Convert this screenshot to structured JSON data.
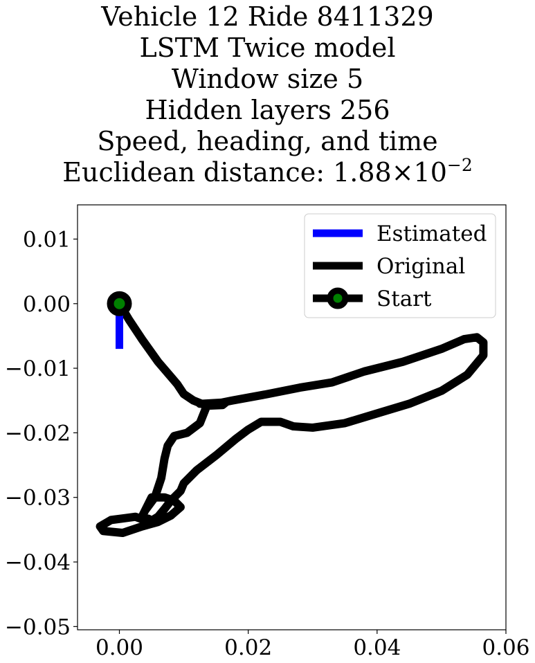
{
  "chart_data": {
    "type": "line",
    "title_lines": [
      "Vehicle 12 Ride 8411329",
      "LSTM Twice model",
      "Window size 5",
      "Hidden layers 256",
      "Speed, heading, and time"
    ],
    "title_metric": {
      "label": "Euclidean distance: ",
      "mantissa": "1.88",
      "times": "×",
      "base": "10",
      "exponent": "−2"
    },
    "xlim": [
      -0.0065,
      0.06
    ],
    "ylim": [
      -0.0505,
      0.0153
    ],
    "xticks": [
      0.0,
      0.02,
      0.04,
      0.06
    ],
    "xtick_labels": [
      "0.00",
      "0.02",
      "0.04",
      "0.06"
    ],
    "yticks": [
      0.01,
      0.0,
      -0.01,
      -0.02,
      -0.03,
      -0.04,
      -0.05
    ],
    "ytick_labels": [
      "0.01",
      "0.00",
      "−0.01",
      "−0.02",
      "−0.03",
      "−0.04",
      "−0.05"
    ],
    "grid": false,
    "legend_position": "top-right",
    "colors": {
      "estimated": "#0000ff",
      "original": "#000000",
      "start_marker_fill": "#008000",
      "start_marker_edge": "#000000"
    },
    "series": [
      {
        "name": "Estimated",
        "x": [
          0.0,
          0.0
        ],
        "y": [
          0.0,
          -0.007
        ]
      },
      {
        "name": "Original",
        "x": [
          0.0,
          0.0015,
          0.0035,
          0.006,
          0.009,
          0.01,
          0.0115,
          0.0135,
          0.016,
          0.0165,
          0.013,
          0.0125,
          0.013,
          0.0145,
          0.0175,
          0.023,
          0.028,
          0.033,
          0.038,
          0.044,
          0.05,
          0.0535,
          0.0555,
          0.0565,
          0.0565,
          0.054,
          0.05,
          0.045,
          0.04,
          0.035,
          0.03,
          0.027,
          0.025,
          0.022,
          0.02,
          0.018,
          0.015,
          0.012,
          0.01,
          0.0095,
          0.008,
          0.007,
          0.006,
          0.005,
          0.0045,
          0.004,
          0.0033,
          0.0025,
          0.001,
          -0.0013,
          -0.003,
          -0.0025,
          0.0005,
          0.0035,
          0.006,
          0.008,
          0.0095,
          0.0085,
          0.007,
          0.005,
          0.0045,
          0.0035,
          0.004,
          0.0055,
          0.0065,
          0.007,
          0.0075,
          0.0085,
          0.0105,
          0.0125,
          0.0135
        ],
        "y": [
          0.0,
          -0.0025,
          -0.0055,
          -0.009,
          -0.0125,
          -0.014,
          -0.015,
          -0.0158,
          -0.0157,
          -0.0153,
          -0.0155,
          -0.0155,
          -0.0155,
          -0.0156,
          -0.015,
          -0.014,
          -0.013,
          -0.0122,
          -0.0105,
          -0.009,
          -0.007,
          -0.0055,
          -0.0052,
          -0.006,
          -0.008,
          -0.011,
          -0.0135,
          -0.0155,
          -0.017,
          -0.0185,
          -0.0192,
          -0.019,
          -0.0183,
          -0.0183,
          -0.0195,
          -0.021,
          -0.0235,
          -0.0258,
          -0.0278,
          -0.029,
          -0.0305,
          -0.0318,
          -0.033,
          -0.0336,
          -0.0333,
          -0.0333,
          -0.0333,
          -0.033,
          -0.0332,
          -0.0335,
          -0.0345,
          -0.0352,
          -0.0355,
          -0.0345,
          -0.0338,
          -0.0328,
          -0.0315,
          -0.0305,
          -0.03,
          -0.03,
          -0.031,
          -0.033,
          -0.032,
          -0.03,
          -0.027,
          -0.024,
          -0.022,
          -0.0205,
          -0.02,
          -0.0185,
          -0.016
        ]
      },
      {
        "name": "Start",
        "x": [
          0.0
        ],
        "y": [
          0.0
        ]
      }
    ]
  }
}
